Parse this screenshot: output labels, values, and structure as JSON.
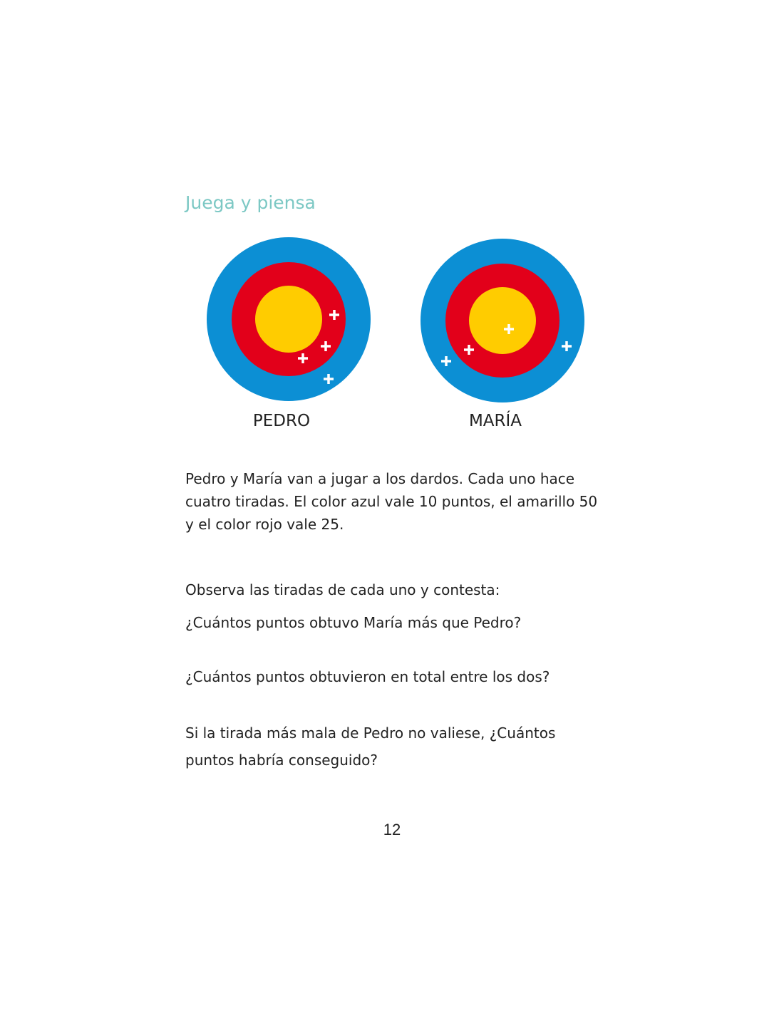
{
  "section_title": "Juega y piensa",
  "colors": {
    "blue": "#0c8fd4",
    "red": "#e2001a",
    "yellow": "#ffcc00",
    "title": "#7cc8c4"
  },
  "targets": [
    {
      "name": "PEDRO",
      "hits": [
        "red",
        "red",
        "red",
        "blue"
      ]
    },
    {
      "name": "MARÍA",
      "hits": [
        "yellow",
        "red",
        "blue",
        "blue"
      ]
    }
  ],
  "intro": "Pedro y María van a jugar a los dardos. Cada uno hace cuatro tiradas. El color azul vale 10 puntos, el amarillo 50 y el color rojo vale 25.",
  "instruction": "Observa las tiradas de cada uno y contesta:",
  "questions": [
    "¿Cuántos puntos obtuvo María más que Pedro?",
    "¿Cuántos puntos obtuvieron en total entre los dos?",
    "Si la tirada más mala de Pedro no valiese, ¿Cuántos puntos habría conseguido?"
  ],
  "page_number": "12"
}
